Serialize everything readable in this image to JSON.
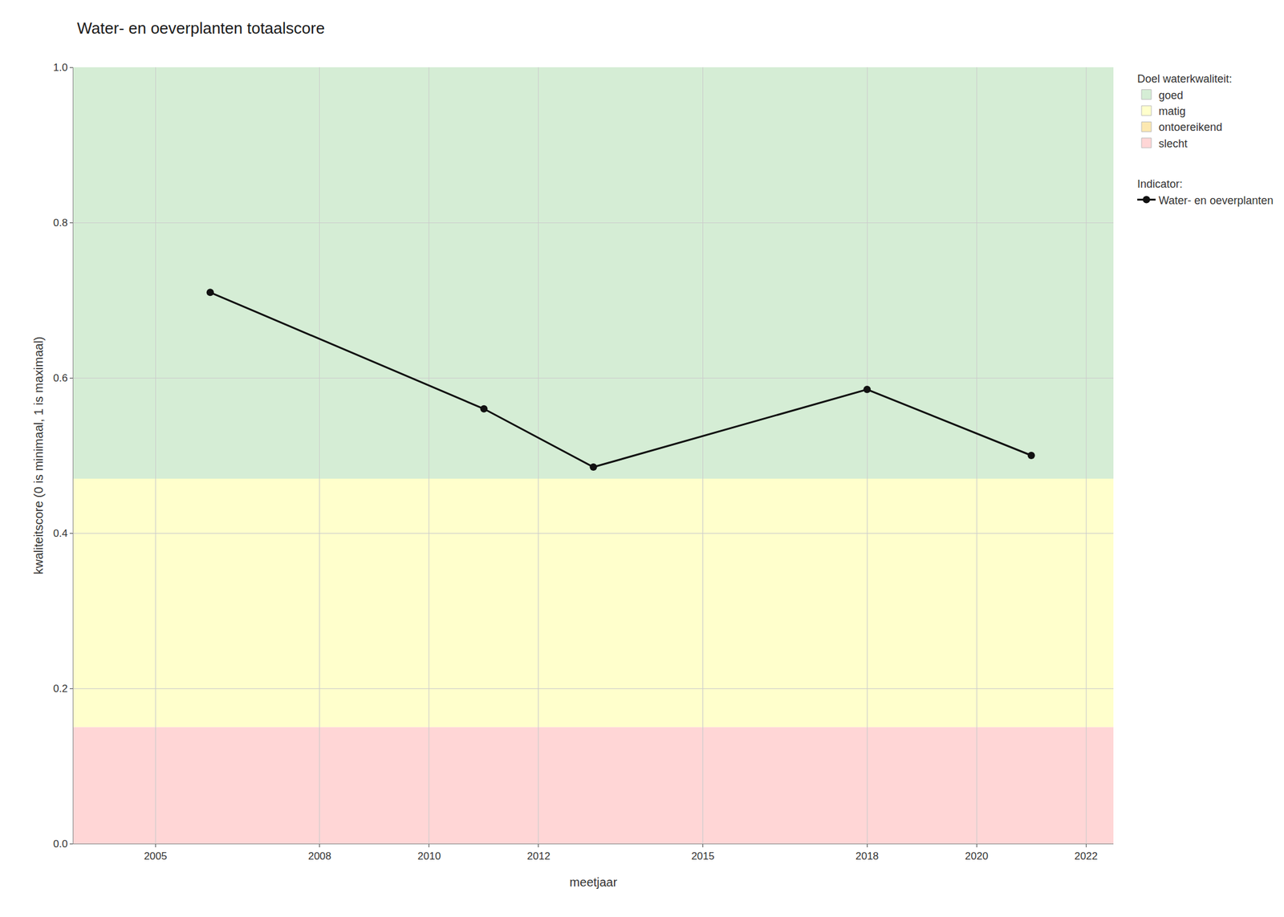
{
  "chart_data": {
    "type": "line",
    "title": "Water- en oeverplanten totaalscore",
    "x_label": "meetjaar",
    "y_label": "kwaliteitscore (0 is minimaal, 1 is maximaal)",
    "x": [
      2006,
      2011,
      2013,
      2018,
      2021
    ],
    "series": [
      {
        "name": "Water- en oeverplanten",
        "color": "#111111",
        "marker": "circle",
        "line_style": "solid",
        "values": [
          0.71,
          0.56,
          0.485,
          0.585,
          0.5
        ]
      }
    ],
    "series_legend_title": "Indicator:",
    "bands": {
      "title": "Doel waterkwaliteit:",
      "items": [
        {
          "name": "goed",
          "color": "#d5edd5",
          "y": [
            0.47,
            1.0
          ]
        },
        {
          "name": "matig",
          "color": "#ffffcc",
          "y": [
            0.15,
            0.47
          ]
        },
        {
          "name": "ontoereikend",
          "color": "#fce8b0"
        },
        {
          "name": "slecht",
          "color": "#ffd6d6",
          "y": [
            0.0,
            0.15
          ]
        }
      ]
    },
    "xlim": [
      2003.5,
      2022.5
    ],
    "xticks": [
      2005,
      2008,
      2010,
      2012,
      2015,
      2018,
      2020,
      2022
    ],
    "ylim": [
      0.0,
      1.0
    ],
    "yticks": [
      {
        "value": 0.0,
        "label": "0.0"
      },
      0.2,
      0.4,
      0.6,
      0.8,
      {
        "value": 1.0,
        "label": "1.0"
      }
    ],
    "grid": true,
    "legend": "right"
  }
}
